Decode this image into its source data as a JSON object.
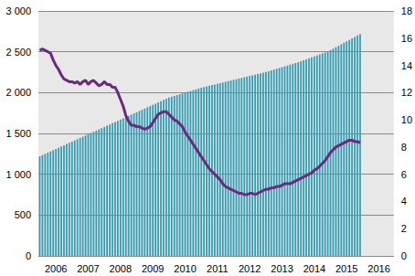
{
  "chart_data": {
    "type": "bar",
    "categories": [
      null,
      null,
      null,
      null,
      null,
      null,
      "2006",
      null,
      null,
      null,
      null,
      null,
      null,
      null,
      null,
      null,
      null,
      null,
      "2007",
      null,
      null,
      null,
      null,
      null,
      null,
      null,
      null,
      null,
      null,
      null,
      "2008",
      null,
      null,
      null,
      null,
      null,
      null,
      null,
      null,
      null,
      null,
      null,
      "2009",
      null,
      null,
      null,
      null,
      null,
      null,
      null,
      null,
      null,
      null,
      null,
      "2010",
      null,
      null,
      null,
      null,
      null,
      null,
      null,
      null,
      null,
      null,
      null,
      "2011",
      null,
      null,
      null,
      null,
      null,
      null,
      null,
      null,
      null,
      null,
      null,
      "2012",
      null,
      null,
      null,
      null,
      null,
      null,
      null,
      null,
      null,
      null,
      null,
      "2013",
      null,
      null,
      null,
      null,
      null,
      null,
      null,
      null,
      null,
      null,
      null,
      "2014",
      null,
      null,
      null,
      null,
      null,
      null,
      null,
      null,
      null,
      null,
      null,
      "2015",
      null,
      null,
      null,
      null,
      null,
      null,
      null,
      null,
      null,
      null,
      null,
      "2016",
      null,
      null,
      null,
      null,
      null
    ],
    "series": [
      {
        "type": "bar",
        "color": "#2f9db3",
        "values": [
          1220,
          1235,
          1250,
          1265,
          1280,
          1295,
          1310,
          1325,
          1340,
          1355,
          1370,
          1385,
          1400,
          1415,
          1430,
          1445,
          1460,
          1475,
          1490,
          1505,
          1520,
          1535,
          1550,
          1565,
          1580,
          1595,
          1610,
          1625,
          1640,
          1655,
          1670,
          1685,
          1700,
          1715,
          1730,
          1745,
          1760,
          1775,
          1790,
          1805,
          1820,
          1835,
          1850,
          1865,
          1880,
          1895,
          1910,
          1925,
          1940,
          1950,
          1960,
          1970,
          1980,
          1990,
          2000,
          2010,
          2020,
          2030,
          2040,
          2050,
          2060,
          2068,
          2076,
          2084,
          2092,
          2100,
          2108,
          2116,
          2124,
          2132,
          2140,
          2148,
          2156,
          2164,
          2172,
          2180,
          2188,
          2196,
          2204,
          2212,
          2220,
          2228,
          2236,
          2244,
          2252,
          2262,
          2272,
          2282,
          2292,
          2302,
          2312,
          2322,
          2332,
          2342,
          2352,
          2362,
          2372,
          2384,
          2396,
          2408,
          2420,
          2432,
          2444,
          2456,
          2468,
          2480,
          2492,
          2504,
          2520,
          2538,
          2556,
          2574,
          2592,
          2610,
          2628,
          2646,
          2664,
          2682,
          2700,
          2718,
          null,
          null,
          null,
          null,
          null,
          null,
          null,
          null,
          null,
          null,
          null,
          null
        ]
      },
      {
        "type": "line",
        "axis": "y2",
        "color": "#6b2a7e",
        "values": [
          15.1,
          15.2,
          15.1,
          15.0,
          14.9,
          14.4,
          14.0,
          13.7,
          13.3,
          13.0,
          12.9,
          12.8,
          12.8,
          12.7,
          12.8,
          12.6,
          12.8,
          12.9,
          12.6,
          12.8,
          12.9,
          12.7,
          12.5,
          12.6,
          12.8,
          12.6,
          12.6,
          12.4,
          12.4,
          12.0,
          11.5,
          11.0,
          10.3,
          9.9,
          9.6,
          9.6,
          9.5,
          9.5,
          9.4,
          9.3,
          9.4,
          9.5,
          9.8,
          10.1,
          10.4,
          10.5,
          10.6,
          10.6,
          10.4,
          10.2,
          10.0,
          9.9,
          9.7,
          9.5,
          9.1,
          8.8,
          8.5,
          8.2,
          7.9,
          7.6,
          7.3,
          7.0,
          6.7,
          6.4,
          6.2,
          6.0,
          5.8,
          5.6,
          5.3,
          5.1,
          5.0,
          4.9,
          4.8,
          4.7,
          4.6,
          4.6,
          4.5,
          4.5,
          4.6,
          4.6,
          4.5,
          4.6,
          4.7,
          4.8,
          4.9,
          4.9,
          5.0,
          5.0,
          5.1,
          5.1,
          5.2,
          5.3,
          5.3,
          5.3,
          5.4,
          5.5,
          5.6,
          5.7,
          5.8,
          5.9,
          6.0,
          6.1,
          6.3,
          6.4,
          6.6,
          6.8,
          7.0,
          7.3,
          7.6,
          7.8,
          8.0,
          8.1,
          8.2,
          8.3,
          8.4,
          8.5,
          8.5,
          8.4,
          8.4,
          8.3,
          null,
          null,
          null,
          null,
          null,
          null,
          null,
          null,
          null,
          null,
          null,
          null
        ]
      }
    ],
    "ylim": [
      0,
      3000
    ],
    "yticks": [
      0,
      500,
      {
        "value": 1000,
        "label": "1 000"
      },
      {
        "value": 1500,
        "label": "1 500"
      },
      {
        "value": 2000,
        "label": "2 000"
      },
      {
        "value": 2500,
        "label": "2 500"
      },
      {
        "value": 3000,
        "label": "3 000"
      }
    ],
    "y2lim": [
      0,
      18
    ],
    "y2ticks": [
      0,
      2,
      4,
      6,
      8,
      10,
      12,
      14,
      16,
      18
    ],
    "grid": true
  }
}
